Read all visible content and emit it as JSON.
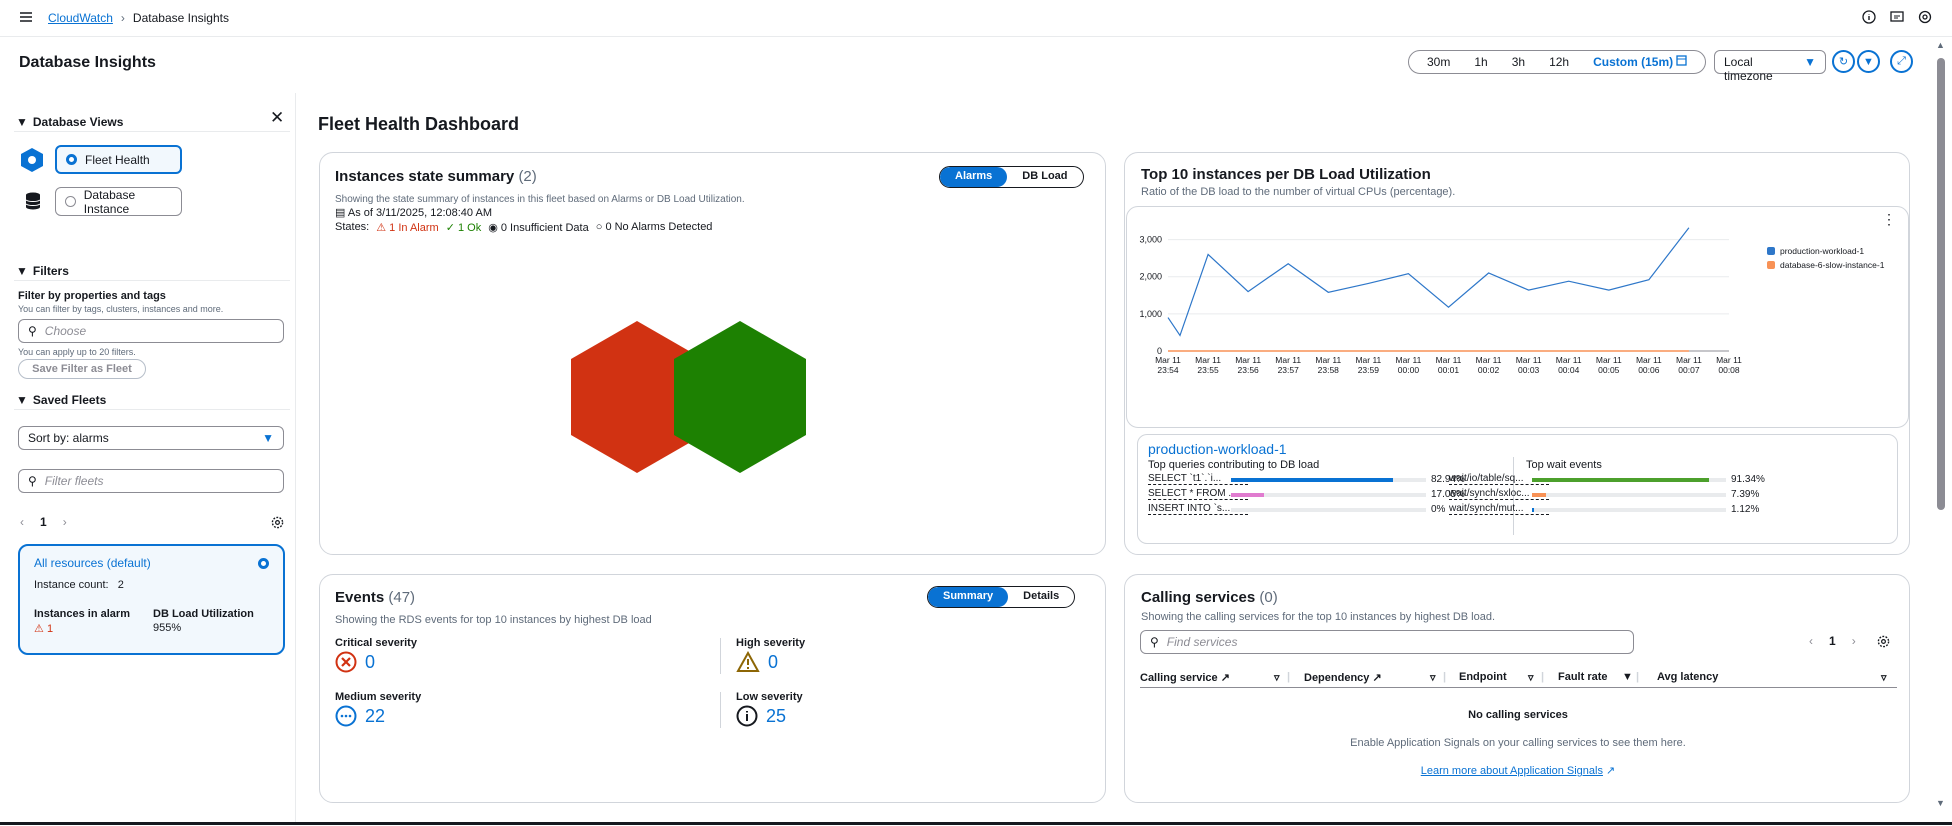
{
  "breadcrumb": {
    "root": "CloudWatch",
    "current": "Database Insights"
  },
  "page_title": "Database Insights",
  "time_range": {
    "options": [
      "30m",
      "1h",
      "3h",
      "12h"
    ],
    "custom": "Custom (15m)",
    "timezone": "Local timezone"
  },
  "sidebar": {
    "views_title": "Database Views",
    "views": [
      "Fleet Health",
      "Database Instance"
    ],
    "filters_title": "Filters",
    "filter_label": "Filter by properties and tags",
    "filter_hint": "You can filter by tags, clusters, instances and more.",
    "filter_placeholder": "Choose",
    "filter_limit": "You can apply up to 20 filters.",
    "save_filter": "Save Filter as Fleet",
    "saved_title": "Saved Fleets",
    "sort": "Sort by: alarms",
    "fleet_filter_placeholder": "Filter fleets",
    "page": "1",
    "fleet_card": {
      "name": "All resources (default)",
      "count_label": "Instance count:",
      "count": "2",
      "alarm_label": "Instances in alarm",
      "alarm_value": "1",
      "load_label": "DB Load Utilization",
      "load_value": "955%"
    }
  },
  "dashboard_title": "Fleet Health Dashboard",
  "state_summary": {
    "title": "Instances state summary",
    "count": "(2)",
    "tabs": [
      "Alarms",
      "DB Load"
    ],
    "desc": "Showing the state summary of instances in this fleet based on Alarms or DB Load Utilization.",
    "asof": "As of 3/11/2025, 12:08:40 AM",
    "states_label": "States:",
    "alarm": "1 In Alarm",
    "ok": "1 Ok",
    "insufficient": "0 Insufficient Data",
    "noalarm": "0 No Alarms Detected",
    "colors": {
      "alarm": "#d13212",
      "ok": "#1d8102"
    }
  },
  "top10": {
    "title": "Top 10 instances per DB Load Utilization",
    "subtitle": "Ratio of the DB load to the number of virtual CPUs (percentage).",
    "instance": "production-workload-1",
    "queries_title": "Top queries contributing to DB load",
    "waits_title": "Top wait events",
    "queries": [
      {
        "text": "SELECT `t1`.`i...",
        "pct": "82.94%",
        "value": 82.94,
        "color": "#0972d3"
      },
      {
        "text": "SELECT * FROM ...",
        "pct": "17.05%",
        "value": 17.05,
        "color": "#e07bcf"
      },
      {
        "text": "INSERT INTO `s...",
        "pct": "0%",
        "value": 0,
        "color": "#0972d3"
      }
    ],
    "waits": [
      {
        "text": "wait/io/table/sq...",
        "pct": "91.34%",
        "value": 91.34,
        "color": "#4ca02c"
      },
      {
        "text": "wait/synch/sxloc...",
        "pct": "7.39%",
        "value": 7.39,
        "color": "#f89256"
      },
      {
        "text": "wait/synch/mut...",
        "pct": "1.12%",
        "value": 1.12,
        "color": "#0972d3"
      }
    ]
  },
  "chart_data": {
    "type": "line",
    "x": [
      "Mar 11 23:54",
      "Mar 11 23:55",
      "Mar 11 23:56",
      "Mar 11 23:57",
      "Mar 11 23:58",
      "Mar 11 23:59",
      "Mar 11 00:00",
      "Mar 11 00:01",
      "Mar 11 00:02",
      "Mar 11 00:03",
      "Mar 11 00:04",
      "Mar 11 00:05",
      "Mar 11 00:06",
      "Mar 11 00:07",
      "Mar 11 00:08"
    ],
    "x_ticks_top": [
      "Mar 11",
      "Mar 11",
      "Mar 11",
      "Mar 11",
      "Mar 11",
      "Mar 11",
      "Mar 11",
      "Mar 11",
      "Mar 11",
      "Mar 11",
      "Mar 11",
      "Mar 11",
      "Mar 11",
      "Mar 11",
      "Mar 11"
    ],
    "x_ticks_bottom": [
      "23:54",
      "23:55",
      "23:56",
      "23:57",
      "23:58",
      "23:59",
      "00:00",
      "00:01",
      "00:02",
      "00:03",
      "00:04",
      "00:05",
      "00:06",
      "00:07",
      "00:08"
    ],
    "y_ticks": [
      "0",
      "1,000",
      "2,000",
      "3,000"
    ],
    "ylim": [
      0,
      3500
    ],
    "legend_position": "right",
    "series": [
      {
        "name": "production-workload-1",
        "color": "#2e77c9",
        "points": [
          [
            0,
            900
          ],
          [
            0.3,
            420
          ],
          [
            1,
            2600
          ],
          [
            2,
            1600
          ],
          [
            3,
            2350
          ],
          [
            4,
            1580
          ],
          [
            5,
            1820
          ],
          [
            6,
            2080
          ],
          [
            7,
            1180
          ],
          [
            8,
            2100
          ],
          [
            9,
            1640
          ],
          [
            10,
            1880
          ],
          [
            11,
            1640
          ],
          [
            12,
            1920
          ],
          [
            13,
            3320
          ]
        ]
      },
      {
        "name": "database-6-slow-instance-1",
        "color": "#f89256",
        "points": [
          [
            0,
            0
          ],
          [
            1,
            0
          ],
          [
            2,
            0
          ],
          [
            3,
            0
          ],
          [
            4,
            0
          ],
          [
            5,
            0
          ],
          [
            6,
            0
          ],
          [
            7,
            0
          ],
          [
            8,
            0
          ],
          [
            9,
            0
          ],
          [
            10,
            0
          ],
          [
            11,
            0
          ],
          [
            12,
            0
          ],
          [
            13,
            0
          ]
        ]
      }
    ]
  },
  "events": {
    "title": "Events",
    "count": "(47)",
    "tabs": [
      "Summary",
      "Details"
    ],
    "desc": "Showing the RDS events for top 10 instances by highest DB load",
    "critical_label": "Critical severity",
    "critical": "0",
    "high_label": "High severity",
    "high": "0",
    "medium_label": "Medium severity",
    "medium": "22",
    "low_label": "Low severity",
    "low": "25"
  },
  "calling": {
    "title": "Calling services",
    "count": "(0)",
    "desc": "Showing the calling services for the top 10 instances by highest DB load.",
    "search_placeholder": "Find services",
    "page": "1",
    "columns": [
      "Calling service",
      "Dependency",
      "Endpoint",
      "Fault rate",
      "Avg latency"
    ],
    "empty_title": "No calling services",
    "empty_desc": "Enable Application Signals on your calling services to see them here.",
    "learn_link": "Learn more about Application Signals"
  }
}
